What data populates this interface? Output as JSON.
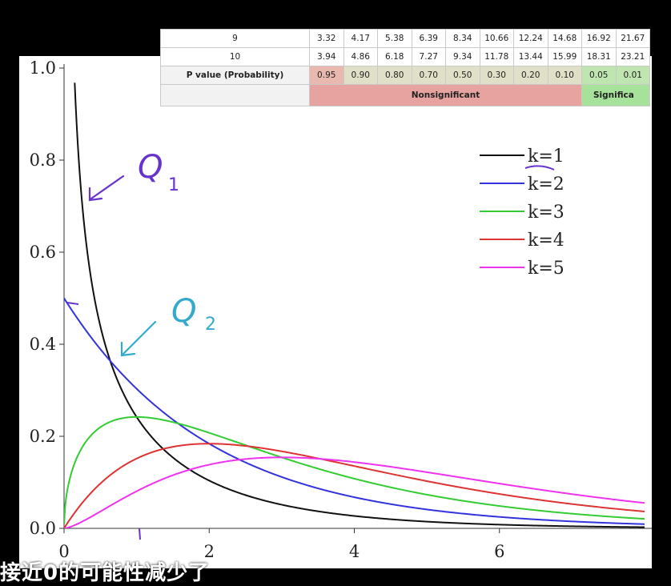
{
  "chart_data": {
    "type": "line",
    "xlim": [
      0,
      8
    ],
    "ylim": [
      0,
      1.0
    ],
    "x_ticks": [
      "0",
      "2",
      "4",
      "6"
    ],
    "y_ticks": [
      "0.0",
      "0.2",
      "0.4",
      "0.6",
      "0.8",
      "1.0"
    ],
    "grid": false,
    "legend_position": "top-right",
    "series": [
      {
        "name": "k=1",
        "k": 1,
        "color": "#111111"
      },
      {
        "name": "k=2",
        "k": 2,
        "color": "#3333dd"
      },
      {
        "name": "k=3",
        "k": 3,
        "color": "#33cc33"
      },
      {
        "name": "k=4",
        "k": 4,
        "color": "#dd3333"
      },
      {
        "name": "k=5",
        "k": 5,
        "color": "#ee33ee"
      }
    ],
    "annotations": [
      {
        "text": "Q",
        "subscript": "1",
        "color": "#6633cc"
      },
      {
        "text": "Q",
        "subscript": "2",
        "color": "#33aacc"
      }
    ]
  },
  "table": {
    "rows": [
      {
        "label": "9",
        "values": [
          "3.32",
          "4.17",
          "5.38",
          "6.39",
          "8.34",
          "10.66",
          "12.24",
          "14.68",
          "16.92",
          "21.67"
        ]
      },
      {
        "label": "10",
        "values": [
          "3.94",
          "4.86",
          "6.18",
          "7.27",
          "9.34",
          "11.78",
          "13.44",
          "15.99",
          "18.31",
          "23.21"
        ]
      }
    ],
    "p_row": {
      "label": "P value (Probability)",
      "values": [
        "0.95",
        "0.90",
        "0.80",
        "0.70",
        "0.50",
        "0.30",
        "0.20",
        "0.10",
        "0.05",
        "0.01"
      ]
    },
    "band": {
      "nonsig": "Nonsignificant",
      "sig": "Significa"
    }
  },
  "subtitle": "接近0的可能性减少了",
  "colors": {
    "nonsig": "#e6a3a0",
    "sig": "#a6e29a",
    "background": "#000000"
  }
}
